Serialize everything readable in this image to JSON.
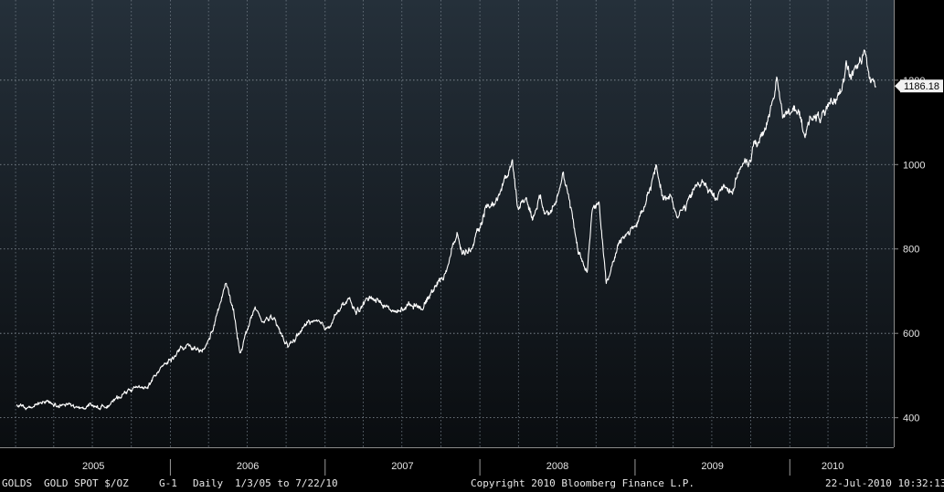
{
  "chart_data": {
    "type": "line",
    "series": [
      {
        "name": "",
        "color": "#ffffff",
        "points": [
          [
            "2005-01-03",
            428
          ],
          [
            "2005-02-01",
            425
          ],
          [
            "2005-02-20",
            432
          ],
          [
            "2005-03-15",
            440
          ],
          [
            "2005-04-10",
            428
          ],
          [
            "2005-05-01",
            432
          ],
          [
            "2005-06-01",
            420
          ],
          [
            "2005-06-25",
            432
          ],
          [
            "2005-07-20",
            423
          ],
          [
            "2005-08-20",
            438
          ],
          [
            "2005-09-15",
            460
          ],
          [
            "2005-10-10",
            472
          ],
          [
            "2005-11-01",
            468
          ],
          [
            "2005-11-20",
            488
          ],
          [
            "2005-12-10",
            525
          ],
          [
            "2006-01-05",
            540
          ],
          [
            "2006-01-25",
            562
          ],
          [
            "2006-02-15",
            568
          ],
          [
            "2006-03-10",
            555
          ],
          [
            "2006-03-25",
            565
          ],
          [
            "2006-04-15",
            620
          ],
          [
            "2006-05-12",
            720
          ],
          [
            "2006-05-30",
            650
          ],
          [
            "2006-06-14",
            555
          ],
          [
            "2006-07-05",
            620
          ],
          [
            "2006-07-20",
            660
          ],
          [
            "2006-08-05",
            625
          ],
          [
            "2006-08-25",
            640
          ],
          [
            "2006-09-10",
            615
          ],
          [
            "2006-10-05",
            568
          ],
          [
            "2006-11-01",
            600
          ],
          [
            "2006-11-25",
            630
          ],
          [
            "2006-12-20",
            620
          ],
          [
            "2007-01-05",
            610
          ],
          [
            "2007-01-25",
            645
          ],
          [
            "2007-02-25",
            680
          ],
          [
            "2007-03-15",
            650
          ],
          [
            "2007-04-20",
            690
          ],
          [
            "2007-05-15",
            670
          ],
          [
            "2007-06-20",
            648
          ],
          [
            "2007-07-10",
            665
          ],
          [
            "2007-08-05",
            670
          ],
          [
            "2007-08-20",
            660
          ],
          [
            "2007-09-15",
            710
          ],
          [
            "2007-10-10",
            740
          ],
          [
            "2007-11-08",
            835
          ],
          [
            "2007-11-20",
            790
          ],
          [
            "2007-12-10",
            800
          ],
          [
            "2007-12-28",
            835
          ],
          [
            "2008-01-15",
            900
          ],
          [
            "2008-02-05",
            910
          ],
          [
            "2008-02-25",
            950
          ],
          [
            "2008-03-17",
            1011
          ],
          [
            "2008-04-01",
            895
          ],
          [
            "2008-04-20",
            925
          ],
          [
            "2008-05-05",
            870
          ],
          [
            "2008-05-20",
            925
          ],
          [
            "2008-06-10",
            880
          ],
          [
            "2008-06-30",
            930
          ],
          [
            "2008-07-15",
            975
          ],
          [
            "2008-08-05",
            880
          ],
          [
            "2008-08-20",
            800
          ],
          [
            "2008-09-10",
            740
          ],
          [
            "2008-09-22",
            900
          ],
          [
            "2008-10-08",
            910
          ],
          [
            "2008-10-25",
            720
          ],
          [
            "2008-11-05",
            750
          ],
          [
            "2008-11-25",
            815
          ],
          [
            "2008-12-15",
            840
          ],
          [
            "2009-01-05",
            860
          ],
          [
            "2009-01-25",
            900
          ],
          [
            "2009-02-20",
            995
          ],
          [
            "2009-03-10",
            915
          ],
          [
            "2009-03-25",
            935
          ],
          [
            "2009-04-10",
            880
          ],
          [
            "2009-05-01",
            900
          ],
          [
            "2009-05-25",
            950
          ],
          [
            "2009-06-10",
            960
          ],
          [
            "2009-06-25",
            935
          ],
          [
            "2009-07-10",
            920
          ],
          [
            "2009-07-30",
            950
          ],
          [
            "2009-08-20",
            940
          ],
          [
            "2009-09-05",
            995
          ],
          [
            "2009-09-25",
            1000
          ],
          [
            "2009-10-10",
            1050
          ],
          [
            "2009-10-25",
            1060
          ],
          [
            "2009-11-10",
            1100
          ],
          [
            "2009-11-25",
            1170
          ],
          [
            "2009-12-02",
            1213
          ],
          [
            "2009-12-15",
            1125
          ],
          [
            "2010-01-05",
            1120
          ],
          [
            "2010-01-20",
            1135
          ],
          [
            "2010-02-05",
            1060
          ],
          [
            "2010-02-20",
            1120
          ],
          [
            "2010-03-10",
            1110
          ],
          [
            "2010-04-01",
            1125
          ],
          [
            "2010-04-15",
            1150
          ],
          [
            "2010-05-01",
            1175
          ],
          [
            "2010-05-13",
            1240
          ],
          [
            "2010-05-25",
            1210
          ],
          [
            "2010-06-10",
            1230
          ],
          [
            "2010-06-28",
            1260
          ],
          [
            "2010-07-08",
            1205
          ],
          [
            "2010-07-16",
            1195
          ],
          [
            "2010-07-22",
            1186.18
          ]
        ]
      }
    ],
    "x_range": [
      "2005-01-03",
      "2010-07-22"
    ],
    "ylim": [
      330,
      1390
    ],
    "y_ticks": [
      400,
      600,
      800,
      1000,
      1200
    ],
    "y_tick_labels": [
      "400",
      "600",
      "800",
      "1000",
      "1200"
    ],
    "x_labels": [
      "2005",
      "2006",
      "2007",
      "2008",
      "2009",
      "2010"
    ],
    "last_value_label": "1186.18",
    "grid": true,
    "background": [
      "#25303a",
      "#0a0d10"
    ]
  },
  "footer": {
    "security": "GOLDS",
    "description": "GOLD SPOT $/OZ",
    "chart_id": "G-1",
    "frequency": "Daily",
    "date_range": "1/3/05 to 7/22/10",
    "copyright": "Copyright 2010 Bloomberg Finance L.P.",
    "timestamp": "22-Jul-2010 10:32:13"
  }
}
